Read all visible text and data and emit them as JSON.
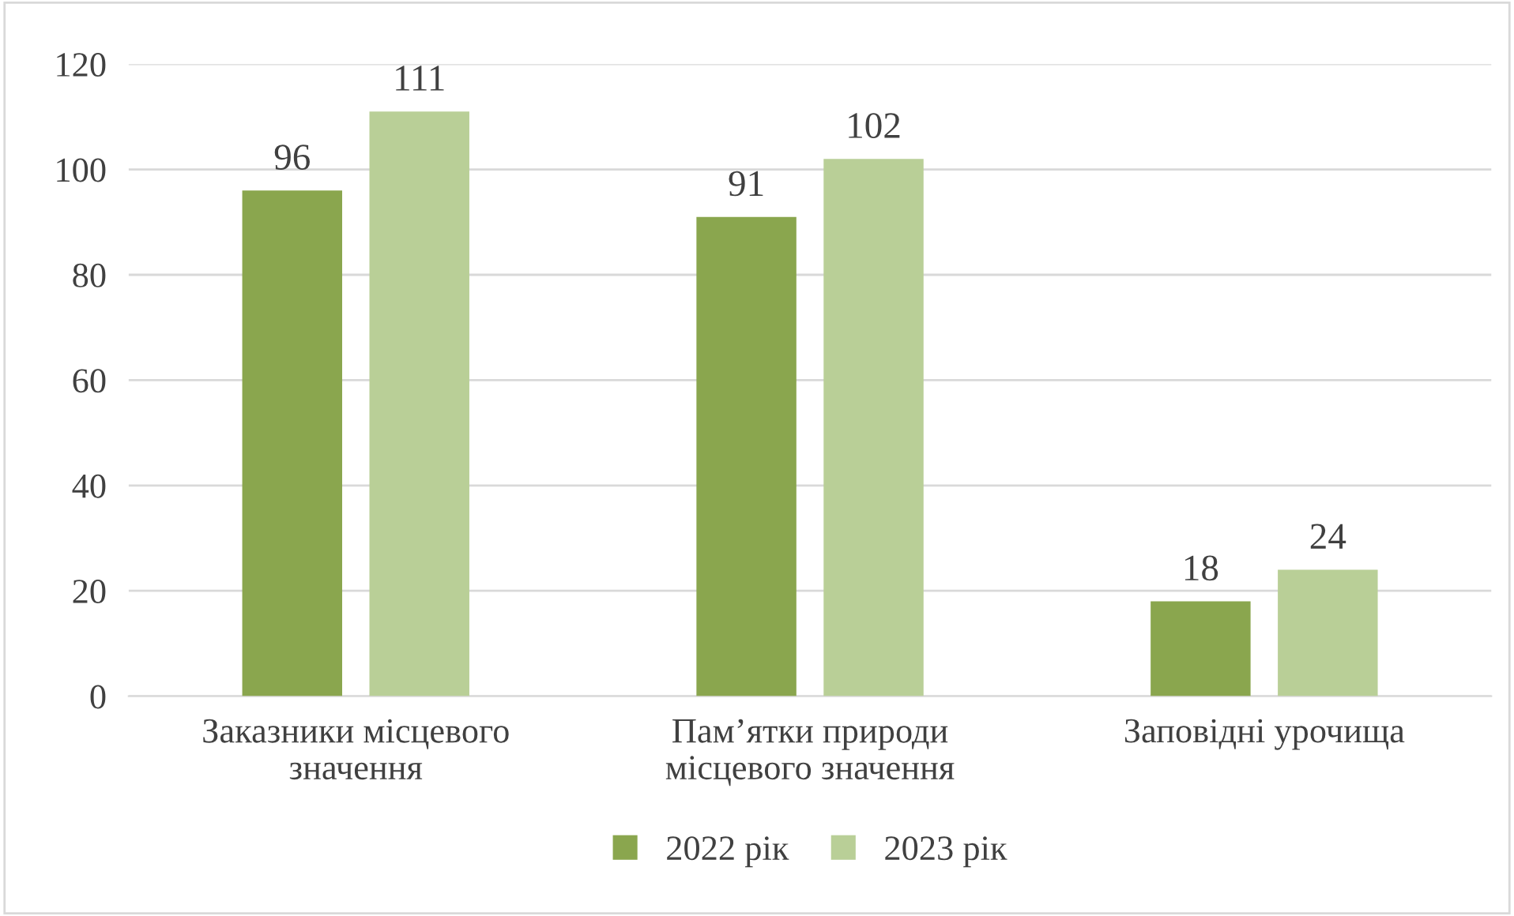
{
  "chart_data": {
    "type": "bar",
    "categories": [
      "Заказники місцевого\nзначення",
      "Пам’ятки природи\nмісцевого значення",
      "Заповідні урочища"
    ],
    "series": [
      {
        "name": "2022 рік",
        "color": "#8aa64e",
        "values": [
          96,
          91,
          18
        ]
      },
      {
        "name": "2023 рік",
        "color": "#b9cf97",
        "values": [
          111,
          102,
          24
        ]
      }
    ],
    "ylim": [
      0,
      120
    ],
    "yticks": [
      0,
      20,
      40,
      60,
      80,
      100,
      120
    ],
    "grid": "y",
    "legend": "bottom",
    "data_labels": true
  }
}
